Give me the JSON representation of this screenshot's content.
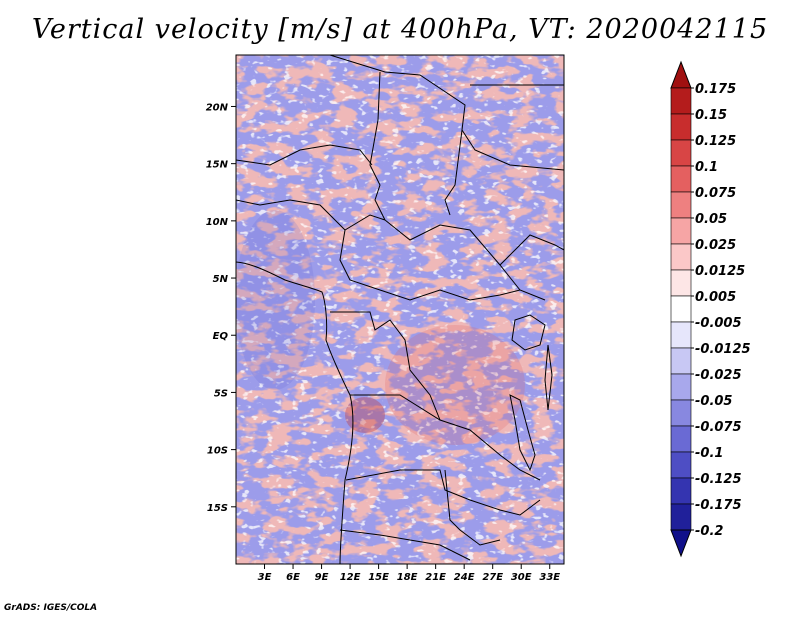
{
  "title": "Vertical velocity [m/s] at 400hPa, VT: 2020042115",
  "credit": "GrADS: IGES/COLA",
  "map": {
    "lat_labels": [
      "20N",
      "15N",
      "10N",
      "5N",
      "EQ",
      "5S",
      "10S",
      "15S"
    ],
    "lat_values": [
      20,
      15,
      10,
      5,
      0,
      -5,
      -10,
      -15
    ],
    "lon_labels": [
      "3E",
      "6E",
      "9E",
      "12E",
      "15E",
      "18E",
      "21E",
      "24E",
      "27E",
      "30E",
      "33E"
    ],
    "lon_values": [
      3,
      6,
      9,
      12,
      15,
      18,
      21,
      24,
      27,
      30,
      33
    ],
    "lon_range": [
      0,
      34.5
    ],
    "lat_range": [
      -20,
      24.5
    ]
  },
  "colorbar": {
    "labels": [
      "0.175",
      "0.15",
      "0.125",
      "0.1",
      "0.075",
      "0.05",
      "0.025",
      "0.0125",
      "0.005",
      "-0.005",
      "-0.0125",
      "-0.025",
      "-0.05",
      "-0.075",
      "-0.1",
      "-0.125",
      "-0.175",
      "-0.2"
    ],
    "colors": [
      "#a01010",
      "#b41c1c",
      "#c82d2d",
      "#d84545",
      "#e46060",
      "#ee8080",
      "#f6a5a5",
      "#fbc8c8",
      "#fde6e6",
      "#ffffff",
      "#e6e6fb",
      "#c8c8f4",
      "#a8a8ec",
      "#8888e0",
      "#6a6ad4",
      "#4e4ec4",
      "#3434b0",
      "#20209a",
      "#10108a"
    ]
  }
}
